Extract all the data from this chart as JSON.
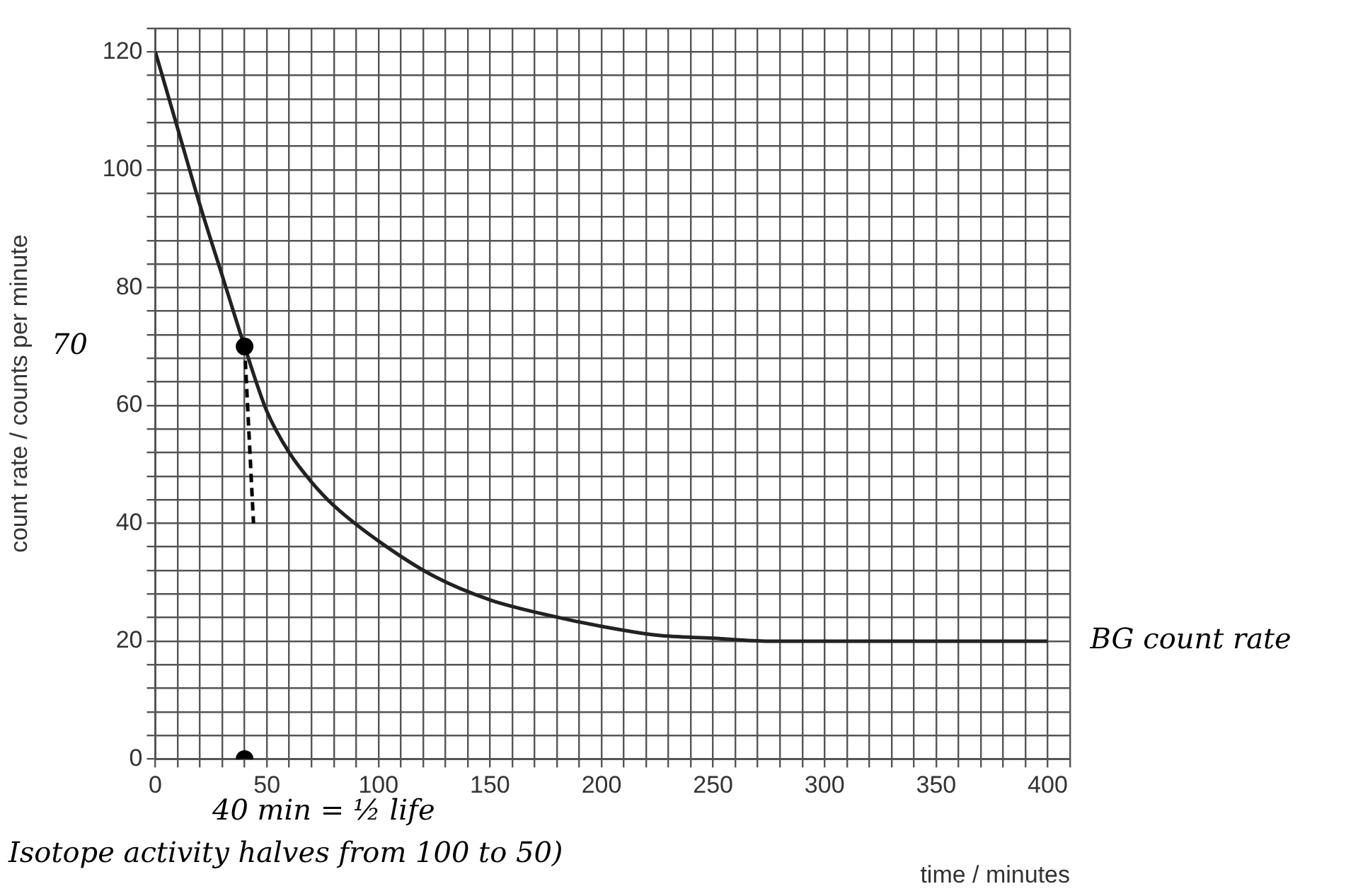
{
  "chart_data": {
    "type": "line",
    "xlabel": "time / minutes",
    "ylabel": "count rate / counts per minute",
    "xlim": [
      0,
      410
    ],
    "ylim": [
      0,
      124
    ],
    "xticks": [
      0,
      {
        "value": 10,
        "label": null
      },
      {
        "value": 20,
        "label": null
      },
      {
        "value": 30,
        "label": null
      },
      {
        "value": 40,
        "label": null
      },
      50,
      {
        "value": 60,
        "label": null
      },
      {
        "value": 70,
        "label": null
      },
      {
        "value": 80,
        "label": null
      },
      {
        "value": 90,
        "label": null
      },
      100,
      {
        "value": 110,
        "label": null
      },
      {
        "value": 120,
        "label": null
      },
      {
        "value": 130,
        "label": null
      },
      {
        "value": 140,
        "label": null
      },
      150,
      {
        "value": 160,
        "label": null
      },
      {
        "value": 170,
        "label": null
      },
      {
        "value": 180,
        "label": null
      },
      {
        "value": 190,
        "label": null
      },
      200,
      {
        "value": 210,
        "label": null
      },
      {
        "value": 220,
        "label": null
      },
      {
        "value": 230,
        "label": null
      },
      {
        "value": 240,
        "label": null
      },
      250,
      {
        "value": 260,
        "label": null
      },
      {
        "value": 270,
        "label": null
      },
      {
        "value": 280,
        "label": null
      },
      {
        "value": 290,
        "label": null
      },
      300,
      {
        "value": 310,
        "label": null
      },
      {
        "value": 320,
        "label": null
      },
      {
        "value": 330,
        "label": null
      },
      {
        "value": 340,
        "label": null
      },
      350,
      {
        "value": 360,
        "label": null
      },
      {
        "value": 370,
        "label": null
      },
      {
        "value": 380,
        "label": null
      },
      {
        "value": 390,
        "label": null
      },
      400,
      {
        "value": 410,
        "label": null
      }
    ],
    "yticks": [
      0,
      {
        "value": 4,
        "label": null
      },
      {
        "value": 8,
        "label": null
      },
      {
        "value": 12,
        "label": null
      },
      {
        "value": 16,
        "label": null
      },
      20,
      {
        "value": 24,
        "label": null
      },
      {
        "value": 28,
        "label": null
      },
      {
        "value": 32,
        "label": null
      },
      {
        "value": 36,
        "label": null
      },
      40,
      {
        "value": 44,
        "label": null
      },
      {
        "value": 48,
        "label": null
      },
      {
        "value": 52,
        "label": null
      },
      {
        "value": 56,
        "label": null
      },
      60,
      {
        "value": 64,
        "label": null
      },
      {
        "value": 68,
        "label": null
      },
      {
        "value": 72,
        "label": null
      },
      {
        "value": 76,
        "label": null
      },
      80,
      {
        "value": 84,
        "label": null
      },
      {
        "value": 88,
        "label": null
      },
      {
        "value": 92,
        "label": null
      },
      {
        "value": 96,
        "label": null
      },
      100,
      {
        "value": 104,
        "label": null
      },
      {
        "value": 108,
        "label": null
      },
      {
        "value": 112,
        "label": null
      },
      {
        "value": 116,
        "label": null
      },
      120,
      {
        "value": 124,
        "label": null
      }
    ],
    "grid": true,
    "series": [
      {
        "color": "#222222",
        "marker": "none",
        "line_style": "solid",
        "x": [
          0,
          10,
          20,
          30,
          40,
          50,
          60,
          70,
          80,
          100,
          125,
          150,
          175,
          200,
          225,
          250,
          275,
          300,
          350,
          400
        ],
        "values": [
          120,
          107,
          94,
          82,
          70,
          59,
          52,
          47,
          43,
          37,
          31,
          27,
          24.5,
          22.5,
          21,
          20.5,
          20,
          20,
          20,
          20
        ]
      },
      {
        "type": "line",
        "color": "#000000",
        "marker": "none",
        "line_style": "dashed",
        "x": [
          40,
          42,
          44
        ],
        "values": [
          70,
          55,
          40
        ]
      },
      {
        "type": "scatter",
        "color": "#000000",
        "marker": "circle",
        "x": [
          40,
          40
        ],
        "values": [
          70,
          0
        ]
      }
    ],
    "annotations": [
      "70",
      {
        "text": "BG count rate",
        "x": 400,
        "y": 20
      },
      "40 min = ½ life",
      "Isotope activity halves from 100 to 50)"
    ]
  }
}
